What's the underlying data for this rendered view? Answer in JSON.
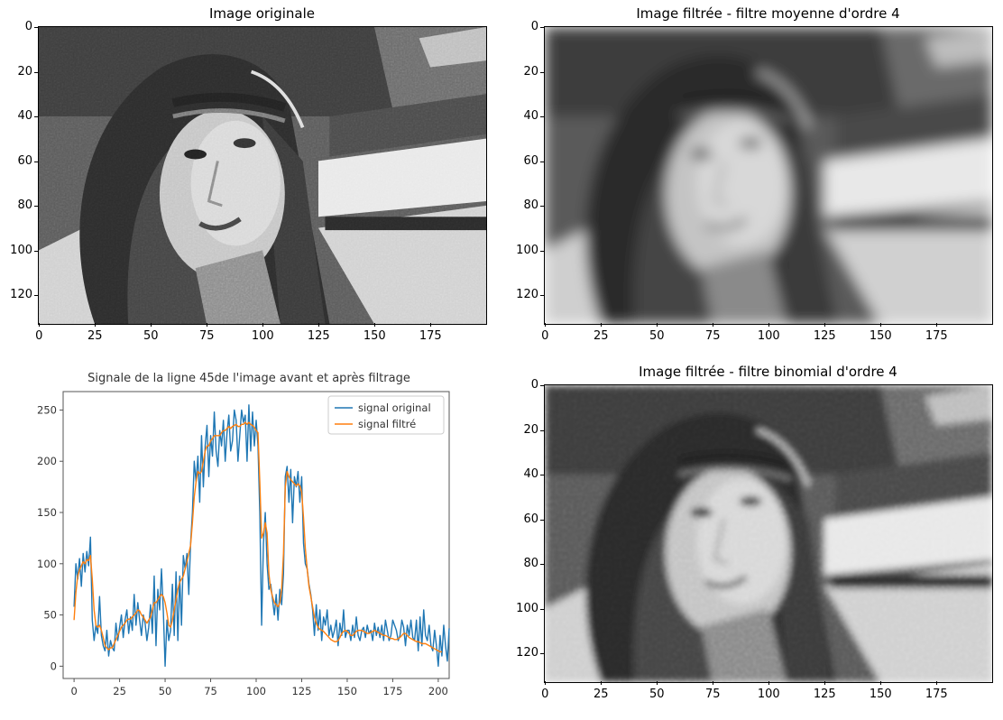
{
  "images": [
    {
      "id": "orig",
      "title": "Image originale",
      "blur": 0,
      "noise": true
    },
    {
      "id": "moy",
      "title": "Image filtrée - filtre moyenne d'ordre 4",
      "blur": 3,
      "noise": false
    },
    {
      "id": "bin",
      "title": "Image filtrée - filtre binomial d'ordre 4",
      "blur": 1.6,
      "noise": true
    }
  ],
  "image_axes": {
    "xticks": [
      "0",
      "25",
      "50",
      "75",
      "100",
      "125",
      "150",
      "175"
    ],
    "yticks": [
      "0",
      "20",
      "40",
      "60",
      "80",
      "100",
      "120"
    ]
  },
  "chart_data": {
    "type": "line",
    "title": "Signale de la ligne 45de l'image avant et après filtrage",
    "xlabel": "",
    "ylabel": "",
    "xlim": [
      -6,
      206
    ],
    "ylim": [
      -12,
      268
    ],
    "xticks": [
      0,
      25,
      50,
      75,
      100,
      125,
      150,
      175,
      200
    ],
    "yticks": [
      0,
      50,
      100,
      150,
      200,
      250
    ],
    "legend": "top-right",
    "colors": {
      "original": "#1f77b4",
      "filtre": "#ff7f0e"
    },
    "series": [
      {
        "name": "signal original",
        "values": [
          58,
          100,
          85,
          105,
          78,
          110,
          92,
          112,
          98,
          126,
          45,
          25,
          40,
          32,
          68,
          30,
          20,
          15,
          35,
          10,
          25,
          18,
          15,
          42,
          25,
          38,
          50,
          28,
          45,
          55,
          32,
          48,
          35,
          70,
          40,
          62,
          45,
          30,
          50,
          42,
          25,
          38,
          60,
          32,
          88,
          20,
          75,
          55,
          95,
          55,
          0,
          45,
          25,
          35,
          80,
          30,
          92,
          25,
          88,
          40,
          108,
          95,
          110,
          70,
          120,
          150,
          200,
          180,
          205,
          160,
          225,
          175,
          215,
          235,
          185,
          225,
          205,
          248,
          210,
          195,
          230,
          215,
          240,
          200,
          228,
          245,
          210,
          220,
          250,
          240,
          200,
          225,
          250,
          238,
          245,
          200,
          255,
          210,
          248,
          215,
          240,
          215,
          150,
          40,
          120,
          150,
          100,
          75,
          80,
          65,
          50,
          70,
          45,
          75,
          60,
          90,
          185,
          195,
          160,
          192,
          140,
          185,
          175,
          190,
          160,
          185,
          120,
          100,
          95,
          80,
          70,
          55,
          30,
          60,
          35,
          55,
          25,
          48,
          40,
          55,
          30,
          40,
          28,
          35,
          45,
          20,
          42,
          30,
          55,
          28,
          35,
          35,
          25,
          40,
          28,
          48,
          30,
          25,
          35,
          38,
          28,
          40,
          32,
          35,
          25,
          42,
          30,
          38,
          28,
          40,
          25,
          45,
          35,
          25,
          30,
          45,
          40,
          35,
          25,
          30,
          45,
          38,
          20,
          40,
          30,
          45,
          28,
          25,
          45,
          15,
          48,
          20,
          55,
          30,
          25,
          40,
          20,
          15,
          35,
          20,
          0,
          30,
          10,
          40,
          20,
          5,
          37
        ]
      },
      {
        "name": "signal filtré",
        "values": [
          45,
          72,
          88,
          94,
          98,
          102,
          100,
          104,
          103,
          108,
          85,
          55,
          40,
          38,
          40,
          35,
          28,
          20,
          18,
          16,
          18,
          18,
          22,
          26,
          30,
          34,
          38,
          40,
          42,
          45,
          46,
          46,
          48,
          50,
          52,
          55,
          54,
          50,
          48,
          45,
          42,
          45,
          48,
          55,
          62,
          62,
          65,
          68,
          70,
          68,
          62,
          52,
          40,
          38,
          45,
          55,
          65,
          75,
          82,
          85,
          88,
          95,
          102,
          110,
          118,
          140,
          165,
          180,
          190,
          188,
          190,
          200,
          210,
          215,
          215,
          220,
          222,
          225,
          225,
          225,
          225,
          228,
          230,
          230,
          232,
          234,
          232,
          234,
          235,
          236,
          234,
          234,
          236,
          236,
          238,
          236,
          238,
          236,
          235,
          233,
          230,
          228,
          180,
          125,
          130,
          140,
          130,
          90,
          75,
          68,
          62,
          60,
          58,
          62,
          75,
          110,
          175,
          190,
          185,
          182,
          180,
          178,
          176,
          178,
          176,
          170,
          145,
          115,
          95,
          78,
          68,
          58,
          48,
          42,
          38,
          36,
          35,
          34,
          32,
          30,
          28,
          26,
          25,
          24,
          24,
          25,
          28,
          32,
          34,
          35,
          34,
          32,
          30,
          30,
          32,
          34,
          35,
          35,
          35,
          34,
          33,
          32,
          32,
          33,
          34,
          35,
          34,
          33,
          32,
          31,
          30,
          30,
          29,
          28,
          27,
          27,
          26,
          26,
          27,
          28,
          30,
          32,
          32,
          30,
          28,
          27,
          26,
          25,
          24,
          24,
          23,
          22,
          22,
          22,
          21,
          20,
          19,
          18,
          17,
          16,
          15,
          14,
          14
        ]
      }
    ]
  }
}
